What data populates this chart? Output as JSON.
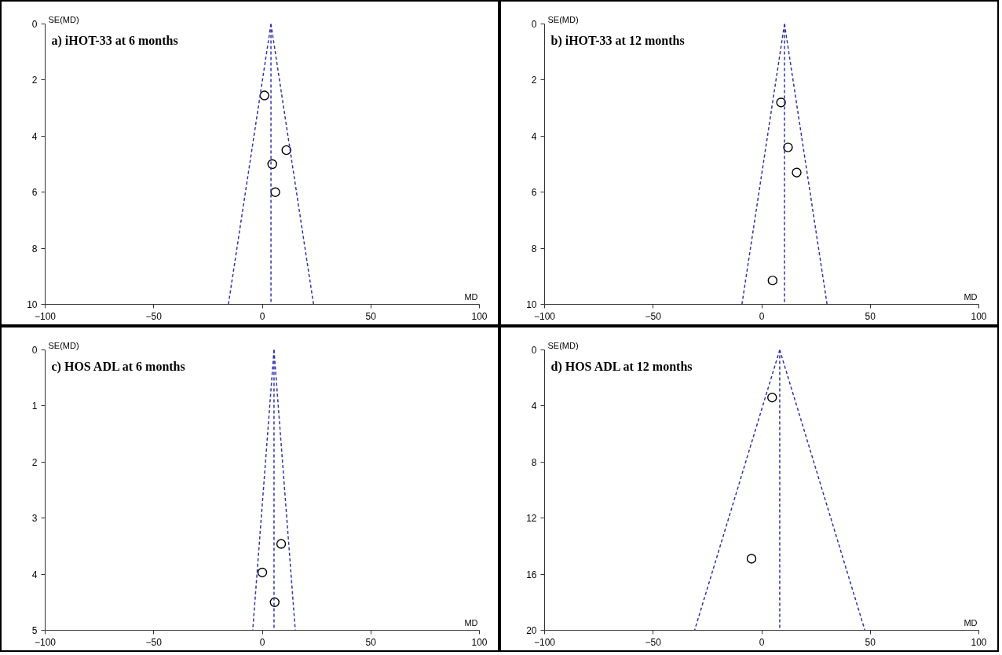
{
  "chart_data": [
    {
      "type": "scatter",
      "title": "a) iHOT-33 at 6 months",
      "xlabel": "MD",
      "ylabel": "SE(MD)",
      "xlim": [
        -100,
        100
      ],
      "xticks": [
        -100,
        -50,
        0,
        50,
        100
      ],
      "ylim": [
        10,
        0
      ],
      "yticks": [
        0,
        2,
        4,
        6,
        8,
        10
      ],
      "grid": false,
      "series": [
        {
          "color": "#000000",
          "marker": "circle",
          "x": [
            1.0,
            11.1,
            4.6,
            6.0
          ],
          "values": [
            2.55,
            4.5,
            5.0,
            6.0
          ]
        },
        {
          "type": "line",
          "color": "#3333aa",
          "line_style": "dashed",
          "x": [
            4,
            -15.6
          ],
          "values": [
            0,
            10
          ]
        },
        {
          "type": "line",
          "color": "#3333aa",
          "line_style": "dashed",
          "x": [
            4,
            23.6
          ],
          "values": [
            0,
            10
          ]
        },
        {
          "type": "line",
          "color": "#3333aa",
          "line_style": "dashed",
          "x": [
            4,
            4
          ],
          "values": [
            0,
            10
          ]
        }
      ]
    },
    {
      "type": "scatter",
      "title": "b) iHOT-33 at 12 months",
      "xlabel": "MD",
      "ylabel": "SE(MD)",
      "xlim": [
        -100,
        100
      ],
      "xticks": [
        -100,
        -50,
        0,
        50,
        100
      ],
      "ylim": [
        10,
        0
      ],
      "yticks": [
        0,
        2,
        4,
        6,
        8,
        10
      ],
      "grid": false,
      "series": [
        {
          "color": "#000000",
          "marker": "circle",
          "x": [
            8.9,
            12.1,
            16.1,
            5.0
          ],
          "values": [
            2.8,
            4.4,
            5.3,
            9.15
          ]
        },
        {
          "type": "line",
          "color": "#3333aa",
          "line_style": "dashed",
          "x": [
            10.5,
            -9.1
          ],
          "values": [
            0,
            10
          ]
        },
        {
          "type": "line",
          "color": "#3333aa",
          "line_style": "dashed",
          "x": [
            10.5,
            30.1
          ],
          "values": [
            0,
            10
          ]
        },
        {
          "type": "line",
          "color": "#3333aa",
          "line_style": "dashed",
          "x": [
            10.5,
            10.5
          ],
          "values": [
            0,
            10
          ]
        }
      ]
    },
    {
      "type": "scatter",
      "title": "c) HOS ADL at 6 months",
      "xlabel": "MD",
      "ylabel": "SE(MD)",
      "xlim": [
        -100,
        100
      ],
      "xticks": [
        -100,
        -50,
        0,
        50,
        100
      ],
      "ylim": [
        5,
        0
      ],
      "yticks": [
        0,
        1,
        2,
        3,
        4,
        5
      ],
      "grid": false,
      "series": [
        {
          "color": "#000000",
          "marker": "circle",
          "x": [
            8.7,
            0,
            5.7
          ],
          "values": [
            3.46,
            3.97,
            4.5
          ]
        },
        {
          "type": "line",
          "color": "#3333aa",
          "line_style": "dashed",
          "x": [
            5.4,
            -4.4
          ],
          "values": [
            0,
            5
          ]
        },
        {
          "type": "line",
          "color": "#3333aa",
          "line_style": "dashed",
          "x": [
            5.4,
            15.2
          ],
          "values": [
            0,
            5
          ]
        },
        {
          "type": "line",
          "color": "#3333aa",
          "line_style": "dashed",
          "x": [
            5.4,
            5.4
          ],
          "values": [
            0,
            5
          ]
        }
      ]
    },
    {
      "type": "scatter",
      "title": "d) HOS ADL at 12 months",
      "xlabel": "MD",
      "ylabel": "SE(MD)",
      "xlim": [
        -100,
        100
      ],
      "xticks": [
        -100,
        -50,
        0,
        50,
        100
      ],
      "ylim": [
        20,
        0
      ],
      "yticks": [
        0,
        4,
        8,
        12,
        16,
        20
      ],
      "grid": false,
      "series": [
        {
          "color": "#000000",
          "marker": "circle",
          "x": [
            4.8,
            -4.7
          ],
          "values": [
            3.4,
            14.9
          ]
        },
        {
          "type": "line",
          "color": "#3333aa",
          "line_style": "dashed",
          "x": [
            8.3,
            -30.9
          ],
          "values": [
            0,
            20
          ]
        },
        {
          "type": "line",
          "color": "#3333aa",
          "line_style": "dashed",
          "x": [
            8.3,
            47.5
          ],
          "values": [
            0,
            20
          ]
        },
        {
          "type": "line",
          "color": "#3333aa",
          "line_style": "dashed",
          "x": [
            8.3,
            8.3
          ],
          "values": [
            0,
            20
          ]
        }
      ]
    }
  ]
}
